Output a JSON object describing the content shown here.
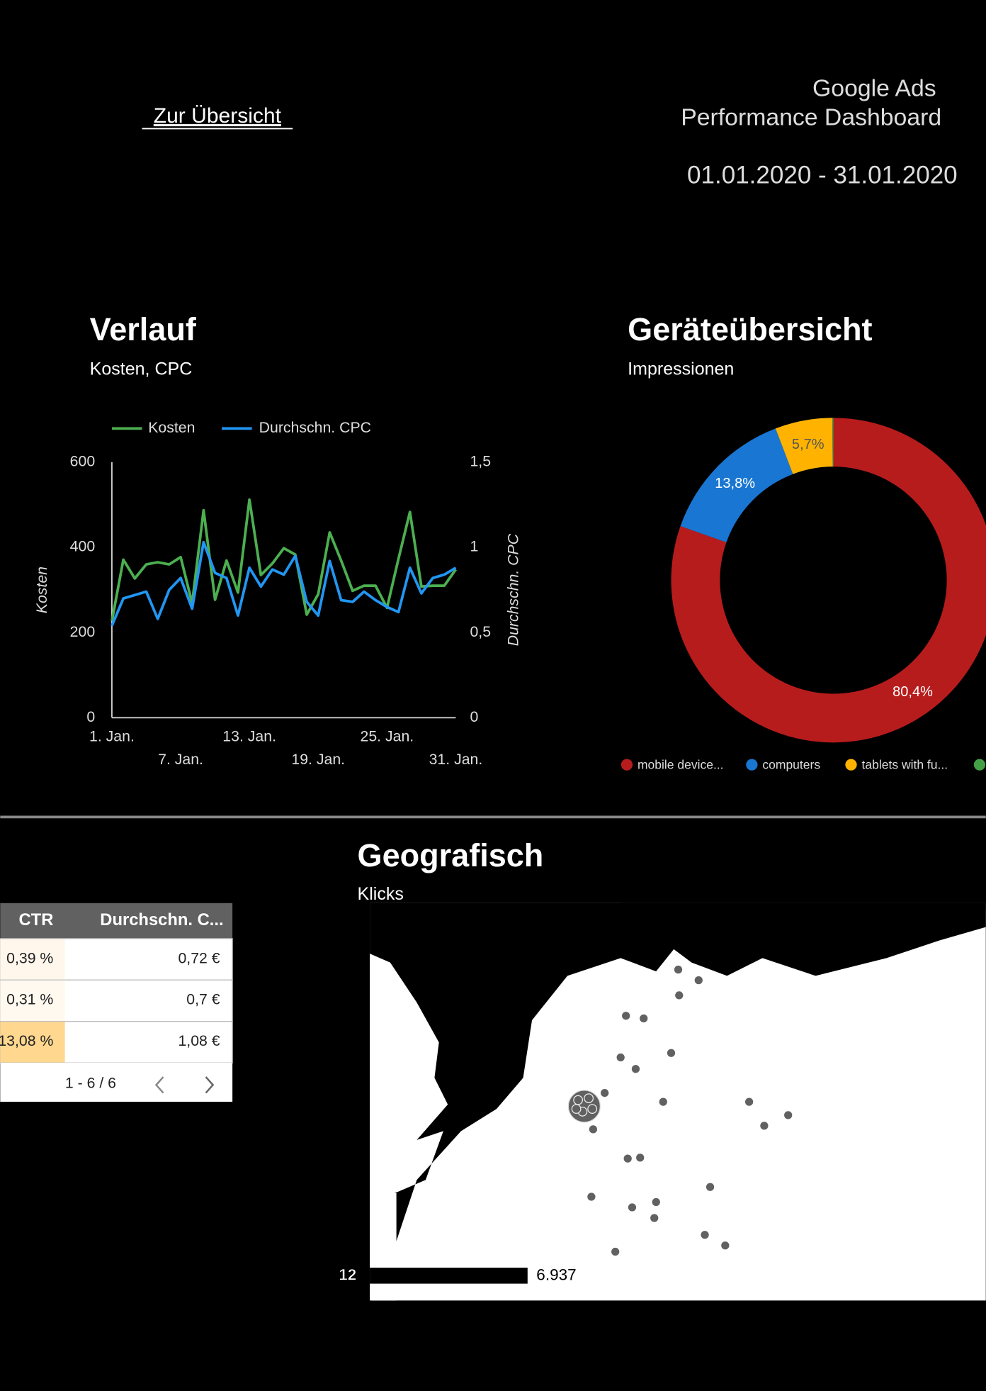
{
  "header": {
    "link": "Zur Übersicht",
    "title_line1": "Google Ads",
    "title_line2": "Performance Dashboard",
    "date_range": "01.01.2020 - 31.01.2020"
  },
  "verlauf": {
    "type": "line",
    "title": "Verlauf",
    "subtitle": "Kosten, CPC",
    "categories": [
      "1. Jan.",
      null,
      null,
      null,
      null,
      null,
      "7. Jan.",
      null,
      null,
      null,
      null,
      null,
      "13. Jan.",
      null,
      null,
      null,
      null,
      null,
      "19. Jan.",
      null,
      null,
      null,
      null,
      null,
      "25. Jan.",
      null,
      null,
      null,
      null,
      null,
      "31. Jan."
    ],
    "series": [
      {
        "name": "Kosten",
        "color": "#4caf50",
        "values": [
          227,
          371,
          327,
          360,
          365,
          360,
          377,
          269,
          487,
          277,
          369,
          294,
          512,
          335,
          362,
          398,
          383,
          242,
          290,
          435,
          369,
          298,
          310,
          310,
          258,
          373,
          483,
          308,
          310,
          310,
          348
        ]
      },
      {
        "name": "Durchschn. CPC",
        "color": "#2196f3",
        "axis": "y2",
        "values": [
          0.54,
          0.7,
          0.72,
          0.74,
          0.58,
          0.75,
          0.82,
          0.64,
          1.03,
          0.85,
          0.82,
          0.6,
          0.88,
          0.77,
          0.87,
          0.84,
          0.95,
          0.68,
          0.6,
          0.92,
          0.69,
          0.68,
          0.74,
          0.69,
          0.65,
          0.62,
          0.88,
          0.73,
          0.82,
          0.84,
          0.88
        ]
      }
    ],
    "y_label": "Kosten",
    "y2_label": "Durchschn. CPC",
    "ylim": [
      0,
      600
    ],
    "yticks": [
      0,
      200,
      400,
      600
    ],
    "y2lim": [
      0,
      1.5
    ],
    "y2ticks": [
      0,
      {
        "value": 0.5,
        "label": "0,5"
      },
      1,
      {
        "value": 1.5,
        "label": "1,5"
      }
    ]
  },
  "geraete": {
    "type": "pie",
    "title": "Geräteübersicht",
    "subtitle": "Impressionen",
    "categories": [
      "mobile device...",
      "computers",
      "tablets with fu...",
      null
    ],
    "values": [
      80.4,
      13.8,
      5.7,
      0.1
    ],
    "value_labels": [
      "80,4%",
      "13,8%",
      "5,7%",
      null
    ],
    "colors": [
      "#b71c1c",
      "#1976d2",
      "#ffb300",
      "#43a047"
    ]
  },
  "table": {
    "columns": [
      "CTR",
      "Durchschn. C..."
    ],
    "rows": [
      [
        "0,39 %",
        "0,72 €"
      ],
      [
        "0,31 %",
        "0,7 €"
      ],
      [
        "13,08 %",
        "1,08 €"
      ]
    ],
    "pagination": "1 - 6 / 6"
  },
  "geo": {
    "title": "Geografisch",
    "subtitle": "Klicks",
    "scale_min": "12",
    "scale_max": "6.937"
  }
}
